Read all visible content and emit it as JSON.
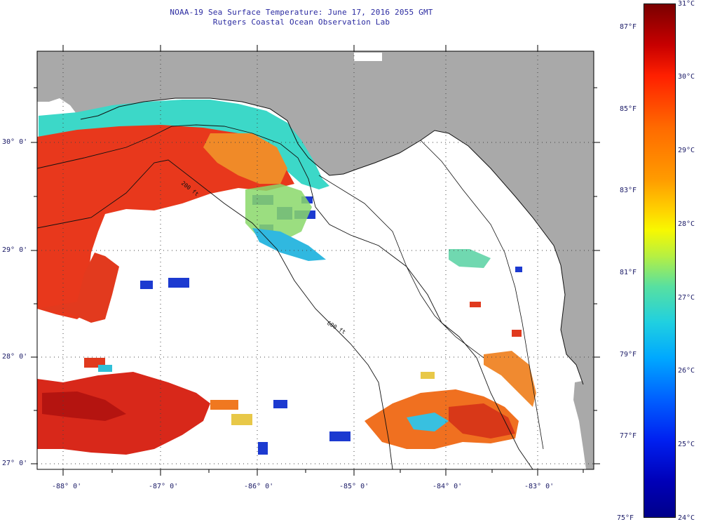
{
  "title": {
    "line1": "NOAA-19 Sea Surface Temperature:  June 17, 2016 2055 GMT",
    "line2": "Rutgers Coastal Ocean Observation Lab"
  },
  "map": {
    "lat_labels": [
      "30° 0'",
      "29° 0'",
      "28° 0'",
      "27° 0'"
    ],
    "lon_labels": [
      "-88° 0'",
      "-87° 0'",
      "-86° 0'",
      "-85° 0'",
      "-84° 0'",
      "-83° 0'"
    ],
    "isobath_labels": [
      "200 ft",
      "600 ft"
    ]
  },
  "colorbar": {
    "fahrenheit_labels": [
      "87°F",
      "85°F",
      "83°F",
      "81°F",
      "79°F",
      "77°F",
      "75°F"
    ],
    "celsius_labels": [
      "31°C",
      "30°C",
      "29°C",
      "28°C",
      "27°C",
      "26°C",
      "25°C",
      "24°C"
    ]
  },
  "colors": {
    "land": "#a9a9a9",
    "cloud": "#ffffff",
    "warm": "#e8361a",
    "hot": "#c41a10",
    "orange": "#f07820",
    "cool": "#30d0c0",
    "cold": "#1a3acc"
  }
}
